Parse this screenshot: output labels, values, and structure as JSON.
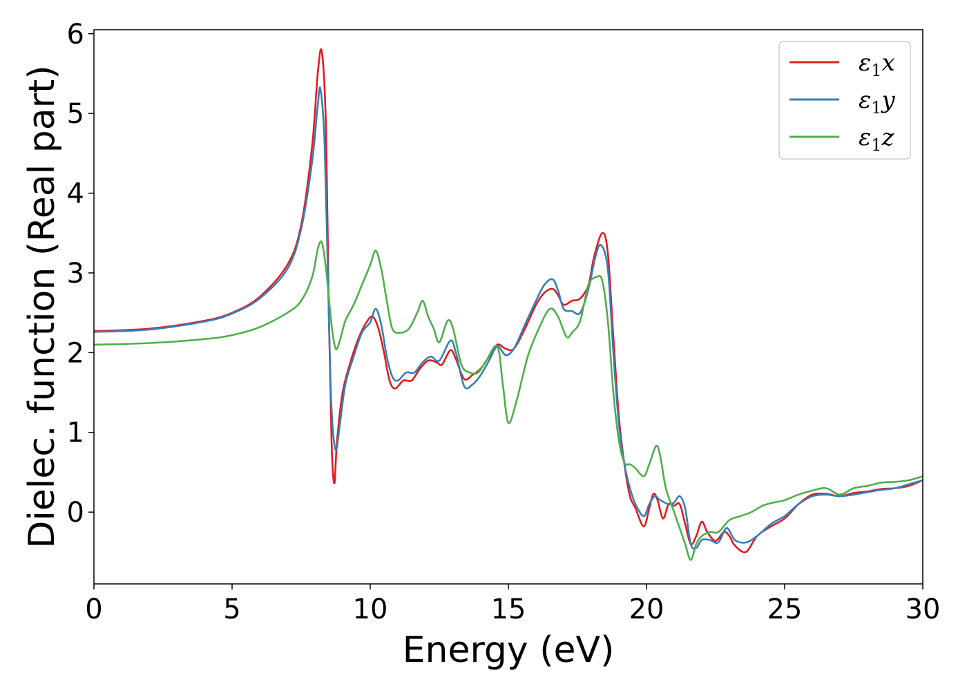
{
  "chart_data": {
    "type": "line",
    "xlabel": "Energy (eV)",
    "ylabel": "Dielec. function (Real part)",
    "xlim": [
      0,
      30
    ],
    "ylim": [
      -0.9,
      6.05
    ],
    "xticks": [
      "0",
      "5",
      "10",
      "15",
      "20",
      "25",
      "30"
    ],
    "yticks": [
      "0",
      "1",
      "2",
      "3",
      "4",
      "5",
      "6"
    ],
    "grid": false,
    "legend_position": "top-right",
    "series": [
      {
        "name": "ε₁x",
        "legend_main": "ε",
        "legend_sub": "1",
        "legend_suffix": "x",
        "color": "#e41a1c",
        "points": [
          [
            0,
            2.27
          ],
          [
            2,
            2.3
          ],
          [
            4,
            2.4
          ],
          [
            5,
            2.5
          ],
          [
            6,
            2.7
          ],
          [
            7,
            3.1
          ],
          [
            7.5,
            3.6
          ],
          [
            7.9,
            4.6
          ],
          [
            8.1,
            5.5
          ],
          [
            8.25,
            5.77
          ],
          [
            8.4,
            4.8
          ],
          [
            8.5,
            2.5
          ],
          [
            8.6,
            0.9
          ],
          [
            8.7,
            0.36
          ],
          [
            8.8,
            0.9
          ],
          [
            9,
            1.5
          ],
          [
            9.3,
            1.9
          ],
          [
            9.6,
            2.2
          ],
          [
            9.9,
            2.4
          ],
          [
            10.1,
            2.45
          ],
          [
            10.3,
            2.3
          ],
          [
            10.5,
            2.0
          ],
          [
            10.7,
            1.65
          ],
          [
            10.9,
            1.55
          ],
          [
            11.2,
            1.65
          ],
          [
            11.5,
            1.65
          ],
          [
            11.8,
            1.8
          ],
          [
            12.1,
            1.9
          ],
          [
            12.4,
            1.88
          ],
          [
            12.6,
            1.85
          ],
          [
            12.9,
            2.03
          ],
          [
            13.1,
            1.92
          ],
          [
            13.4,
            1.67
          ],
          [
            13.7,
            1.72
          ],
          [
            14,
            1.8
          ],
          [
            14.3,
            1.95
          ],
          [
            14.6,
            2.1
          ],
          [
            14.9,
            2.05
          ],
          [
            15.2,
            2.05
          ],
          [
            15.6,
            2.3
          ],
          [
            16,
            2.6
          ],
          [
            16.3,
            2.75
          ],
          [
            16.6,
            2.8
          ],
          [
            16.8,
            2.72
          ],
          [
            17,
            2.6
          ],
          [
            17.3,
            2.65
          ],
          [
            17.6,
            2.68
          ],
          [
            17.9,
            2.85
          ],
          [
            18.1,
            3.2
          ],
          [
            18.4,
            3.5
          ],
          [
            18.6,
            3.25
          ],
          [
            18.8,
            2.2
          ],
          [
            19,
            1.2
          ],
          [
            19.2,
            0.6
          ],
          [
            19.4,
            0.2
          ],
          [
            19.6,
            0.05
          ],
          [
            19.9,
            -0.18
          ],
          [
            20.1,
            0.05
          ],
          [
            20.25,
            0.23
          ],
          [
            20.4,
            0.15
          ],
          [
            20.6,
            -0.08
          ],
          [
            20.8,
            0.1
          ],
          [
            21,
            0.08
          ],
          [
            21.2,
            0.1
          ],
          [
            21.4,
            -0.15
          ],
          [
            21.6,
            -0.4
          ],
          [
            21.8,
            -0.3
          ],
          [
            22,
            -0.12
          ],
          [
            22.2,
            -0.25
          ],
          [
            22.5,
            -0.36
          ],
          [
            22.8,
            -0.25
          ],
          [
            23,
            -0.3
          ],
          [
            23.2,
            -0.42
          ],
          [
            23.6,
            -0.5
          ],
          [
            24,
            -0.3
          ],
          [
            24.5,
            -0.18
          ],
          [
            25,
            -0.08
          ],
          [
            25.5,
            0.1
          ],
          [
            26,
            0.22
          ],
          [
            26.5,
            0.23
          ],
          [
            27,
            0.2
          ],
          [
            27.5,
            0.24
          ],
          [
            28,
            0.26
          ],
          [
            28.5,
            0.29
          ],
          [
            29,
            0.3
          ],
          [
            29.5,
            0.33
          ],
          [
            30,
            0.4
          ]
        ]
      },
      {
        "name": "ε₁y",
        "legend_main": "ε",
        "legend_sub": "1",
        "legend_suffix": "y",
        "color": "#377eb8",
        "points": [
          [
            0,
            2.26
          ],
          [
            2,
            2.29
          ],
          [
            4,
            2.39
          ],
          [
            5,
            2.49
          ],
          [
            6,
            2.68
          ],
          [
            7,
            3.05
          ],
          [
            7.5,
            3.55
          ],
          [
            7.9,
            4.4
          ],
          [
            8.1,
            5.1
          ],
          [
            8.2,
            5.3
          ],
          [
            8.35,
            4.6
          ],
          [
            8.5,
            2.5
          ],
          [
            8.6,
            1.3
          ],
          [
            8.75,
            0.78
          ],
          [
            8.9,
            1.1
          ],
          [
            9.1,
            1.6
          ],
          [
            9.4,
            1.95
          ],
          [
            9.7,
            2.25
          ],
          [
            10,
            2.38
          ],
          [
            10.2,
            2.55
          ],
          [
            10.4,
            2.35
          ],
          [
            10.6,
            1.95
          ],
          [
            10.8,
            1.7
          ],
          [
            11,
            1.65
          ],
          [
            11.3,
            1.75
          ],
          [
            11.6,
            1.75
          ],
          [
            11.9,
            1.88
          ],
          [
            12.2,
            1.95
          ],
          [
            12.5,
            1.9
          ],
          [
            12.9,
            2.15
          ],
          [
            13.1,
            2.0
          ],
          [
            13.4,
            1.58
          ],
          [
            13.7,
            1.6
          ],
          [
            14,
            1.72
          ],
          [
            14.3,
            1.9
          ],
          [
            14.6,
            2.08
          ],
          [
            14.9,
            1.97
          ],
          [
            15.2,
            2.05
          ],
          [
            15.6,
            2.35
          ],
          [
            16,
            2.65
          ],
          [
            16.3,
            2.85
          ],
          [
            16.6,
            2.92
          ],
          [
            16.8,
            2.78
          ],
          [
            17,
            2.55
          ],
          [
            17.3,
            2.52
          ],
          [
            17.6,
            2.5
          ],
          [
            17.9,
            2.8
          ],
          [
            18.15,
            3.2
          ],
          [
            18.35,
            3.35
          ],
          [
            18.6,
            3.05
          ],
          [
            18.8,
            2.0
          ],
          [
            19,
            1.1
          ],
          [
            19.2,
            0.6
          ],
          [
            19.4,
            0.3
          ],
          [
            19.6,
            0.1
          ],
          [
            19.9,
            -0.05
          ],
          [
            20.1,
            0.1
          ],
          [
            20.3,
            0.2
          ],
          [
            20.5,
            0.15
          ],
          [
            20.8,
            0.1
          ],
          [
            21,
            0.12
          ],
          [
            21.2,
            0.2
          ],
          [
            21.4,
            0.05
          ],
          [
            21.6,
            -0.4
          ],
          [
            21.8,
            -0.45
          ],
          [
            22,
            -0.35
          ],
          [
            22.3,
            -0.35
          ],
          [
            22.6,
            -0.38
          ],
          [
            22.9,
            -0.2
          ],
          [
            23.2,
            -0.35
          ],
          [
            23.6,
            -0.38
          ],
          [
            24,
            -0.3
          ],
          [
            24.5,
            -0.15
          ],
          [
            25,
            -0.05
          ],
          [
            25.5,
            0.1
          ],
          [
            26,
            0.2
          ],
          [
            26.5,
            0.22
          ],
          [
            27,
            0.2
          ],
          [
            27.5,
            0.22
          ],
          [
            28,
            0.25
          ],
          [
            28.5,
            0.28
          ],
          [
            29,
            0.3
          ],
          [
            29.5,
            0.35
          ],
          [
            30,
            0.4
          ]
        ]
      },
      {
        "name": "ε₁z",
        "legend_main": "ε",
        "legend_sub": "1",
        "legend_suffix": "z",
        "color": "#4daf4a",
        "points": [
          [
            0,
            2.1
          ],
          [
            2,
            2.12
          ],
          [
            4,
            2.17
          ],
          [
            5,
            2.22
          ],
          [
            6,
            2.32
          ],
          [
            7,
            2.5
          ],
          [
            7.5,
            2.65
          ],
          [
            7.9,
            2.95
          ],
          [
            8.1,
            3.3
          ],
          [
            8.25,
            3.38
          ],
          [
            8.4,
            3.05
          ],
          [
            8.6,
            2.35
          ],
          [
            8.75,
            2.05
          ],
          [
            8.9,
            2.15
          ],
          [
            9.1,
            2.4
          ],
          [
            9.4,
            2.6
          ],
          [
            9.7,
            2.85
          ],
          [
            10,
            3.1
          ],
          [
            10.2,
            3.28
          ],
          [
            10.4,
            3.05
          ],
          [
            10.6,
            2.65
          ],
          [
            10.8,
            2.3
          ],
          [
            11.1,
            2.25
          ],
          [
            11.4,
            2.3
          ],
          [
            11.7,
            2.5
          ],
          [
            11.9,
            2.65
          ],
          [
            12.1,
            2.45
          ],
          [
            12.3,
            2.3
          ],
          [
            12.5,
            2.13
          ],
          [
            12.8,
            2.4
          ],
          [
            13,
            2.3
          ],
          [
            13.3,
            1.85
          ],
          [
            13.6,
            1.75
          ],
          [
            13.9,
            1.75
          ],
          [
            14.2,
            1.9
          ],
          [
            14.6,
            2.08
          ],
          [
            14.8,
            1.6
          ],
          [
            15,
            1.12
          ],
          [
            15.3,
            1.4
          ],
          [
            15.7,
            1.95
          ],
          [
            16.1,
            2.3
          ],
          [
            16.5,
            2.55
          ],
          [
            16.8,
            2.45
          ],
          [
            17.1,
            2.2
          ],
          [
            17.3,
            2.25
          ],
          [
            17.6,
            2.4
          ],
          [
            17.9,
            2.85
          ],
          [
            18.2,
            2.95
          ],
          [
            18.4,
            2.9
          ],
          [
            18.6,
            2.4
          ],
          [
            18.8,
            1.5
          ],
          [
            19,
            0.9
          ],
          [
            19.2,
            0.62
          ],
          [
            19.4,
            0.6
          ],
          [
            19.6,
            0.55
          ],
          [
            19.9,
            0.45
          ],
          [
            20.1,
            0.6
          ],
          [
            20.35,
            0.83
          ],
          [
            20.5,
            0.7
          ],
          [
            20.7,
            0.3
          ],
          [
            21,
            0.0
          ],
          [
            21.2,
            -0.2
          ],
          [
            21.4,
            -0.4
          ],
          [
            21.6,
            -0.6
          ],
          [
            21.8,
            -0.4
          ],
          [
            22,
            -0.3
          ],
          [
            22.3,
            -0.25
          ],
          [
            22.6,
            -0.25
          ],
          [
            23,
            -0.1
          ],
          [
            23.4,
            -0.05
          ],
          [
            23.8,
            0.0
          ],
          [
            24.2,
            0.08
          ],
          [
            24.6,
            0.12
          ],
          [
            25,
            0.15
          ],
          [
            25.5,
            0.22
          ],
          [
            26,
            0.27
          ],
          [
            26.5,
            0.3
          ],
          [
            27,
            0.22
          ],
          [
            27.5,
            0.3
          ],
          [
            28,
            0.33
          ],
          [
            28.5,
            0.37
          ],
          [
            29,
            0.38
          ],
          [
            29.5,
            0.4
          ],
          [
            30,
            0.45
          ]
        ]
      }
    ]
  }
}
